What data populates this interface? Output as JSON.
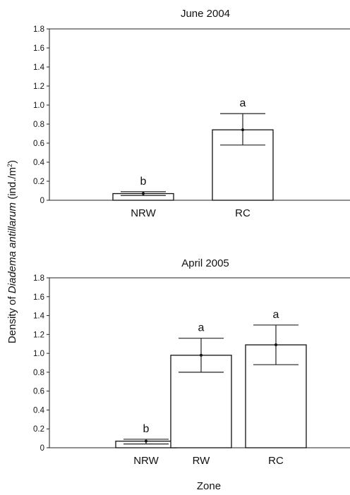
{
  "figure": {
    "ylabel_prefix": "Density of ",
    "ylabel_species": "Diadema antillarum",
    "ylabel_unit": " (ind./m",
    "ylabel_unit_sup": "2",
    "ylabel_unit_end": ")",
    "xlabel": "Zone"
  },
  "chart_data": [
    {
      "type": "bar",
      "title": "June 2004",
      "categories": [
        "NRW",
        "RC"
      ],
      "values": [
        0.07,
        0.74
      ],
      "error_low": [
        0.05,
        0.58
      ],
      "error_high": [
        0.09,
        0.91
      ],
      "significance_letters": [
        "b",
        "a"
      ],
      "ylim": [
        0,
        1.8
      ],
      "yticks": [
        "0",
        "0.2",
        "0.4",
        "0.6",
        "0.8",
        "1.0",
        "1.2",
        "1.4",
        "1.6",
        "1.8"
      ],
      "bar_color": "#ffffff",
      "edge_color": "#111111"
    },
    {
      "type": "bar",
      "title": "April 2005",
      "categories": [
        "NRW",
        "RW",
        "RC"
      ],
      "values": [
        0.07,
        0.98,
        1.09
      ],
      "error_low": [
        0.04,
        0.8,
        0.88
      ],
      "error_high": [
        0.09,
        1.16,
        1.3
      ],
      "significance_letters": [
        "b",
        "a",
        "a"
      ],
      "ylim": [
        0,
        1.8
      ],
      "yticks": [
        "0",
        "0.2",
        "0.4",
        "0.6",
        "0.8",
        "1.0",
        "1.2",
        "1.4",
        "1.6",
        "1.8"
      ],
      "bar_color": "#ffffff",
      "edge_color": "#111111"
    }
  ]
}
